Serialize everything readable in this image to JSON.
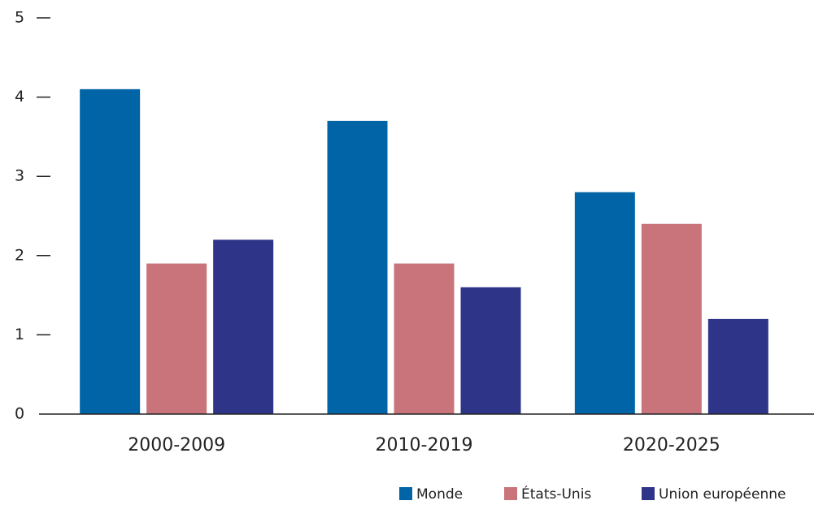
{
  "chart_data": {
    "type": "bar",
    "categories": [
      "2000-2009",
      "2010-2019",
      "2020-2025"
    ],
    "series": [
      {
        "name": "Monde",
        "color": "#0064a6",
        "values": [
          4.1,
          3.7,
          2.8
        ]
      },
      {
        "name": "États-Unis",
        "color": "#c9737b",
        "values": [
          1.9,
          1.9,
          2.4
        ]
      },
      {
        "name": "Union européenne",
        "color": "#2e3487",
        "values": [
          2.2,
          1.6,
          1.2
        ]
      }
    ],
    "ylim": [
      0,
      5
    ],
    "yticks": [
      0,
      1,
      2,
      3,
      4,
      5
    ],
    "legend": "bottom-right"
  }
}
